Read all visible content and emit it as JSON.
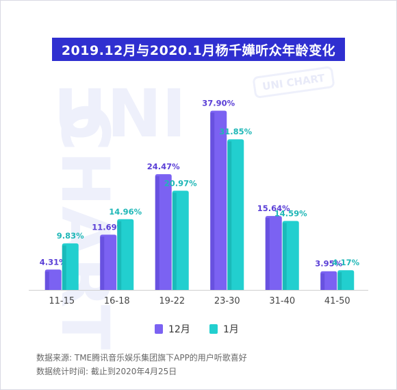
{
  "title": "2019.12月与2020.1月杨千嬅听众年龄变化",
  "watermark": {
    "big": "UNI CHART",
    "stamp": "UNI CHART"
  },
  "colors": {
    "dec": "#7b62f2",
    "jan": "#22cfcf",
    "title_bg": "#2f2fd0",
    "dec_label": "#5a3fd6",
    "jan_label": "#1fb7b7"
  },
  "chart_data": {
    "type": "bar",
    "title": "2019.12月与2020.1月杨千嬅听众年龄变化",
    "categories": [
      "11-15",
      "16-18",
      "19-22",
      "23-30",
      "31-40",
      "41-50"
    ],
    "series": [
      {
        "name": "12月",
        "values": [
          4.31,
          11.69,
          24.47,
          37.9,
          15.64,
          3.95
        ],
        "labels": [
          "4.31%",
          "11.69%",
          "24.47%",
          "37.90%",
          "15.64%",
          "3.95%"
        ]
      },
      {
        "name": "1月",
        "values": [
          9.83,
          14.96,
          20.97,
          31.85,
          14.59,
          4.17
        ],
        "labels": [
          "9.83%",
          "14.96%",
          "20.97%",
          "31.85%",
          "14.59%",
          "4.17%"
        ]
      }
    ],
    "ylim": [
      0,
      40
    ],
    "grid": false,
    "legend_position": "bottom-center"
  },
  "legend": [
    {
      "label": "12月"
    },
    {
      "label": "1月"
    }
  ],
  "source": {
    "line1": "数据来源: TME腾讯音乐娱乐集团旗下APP的用户听歌喜好",
    "line2": "数据统计时间: 截止到2020年4月25日"
  }
}
